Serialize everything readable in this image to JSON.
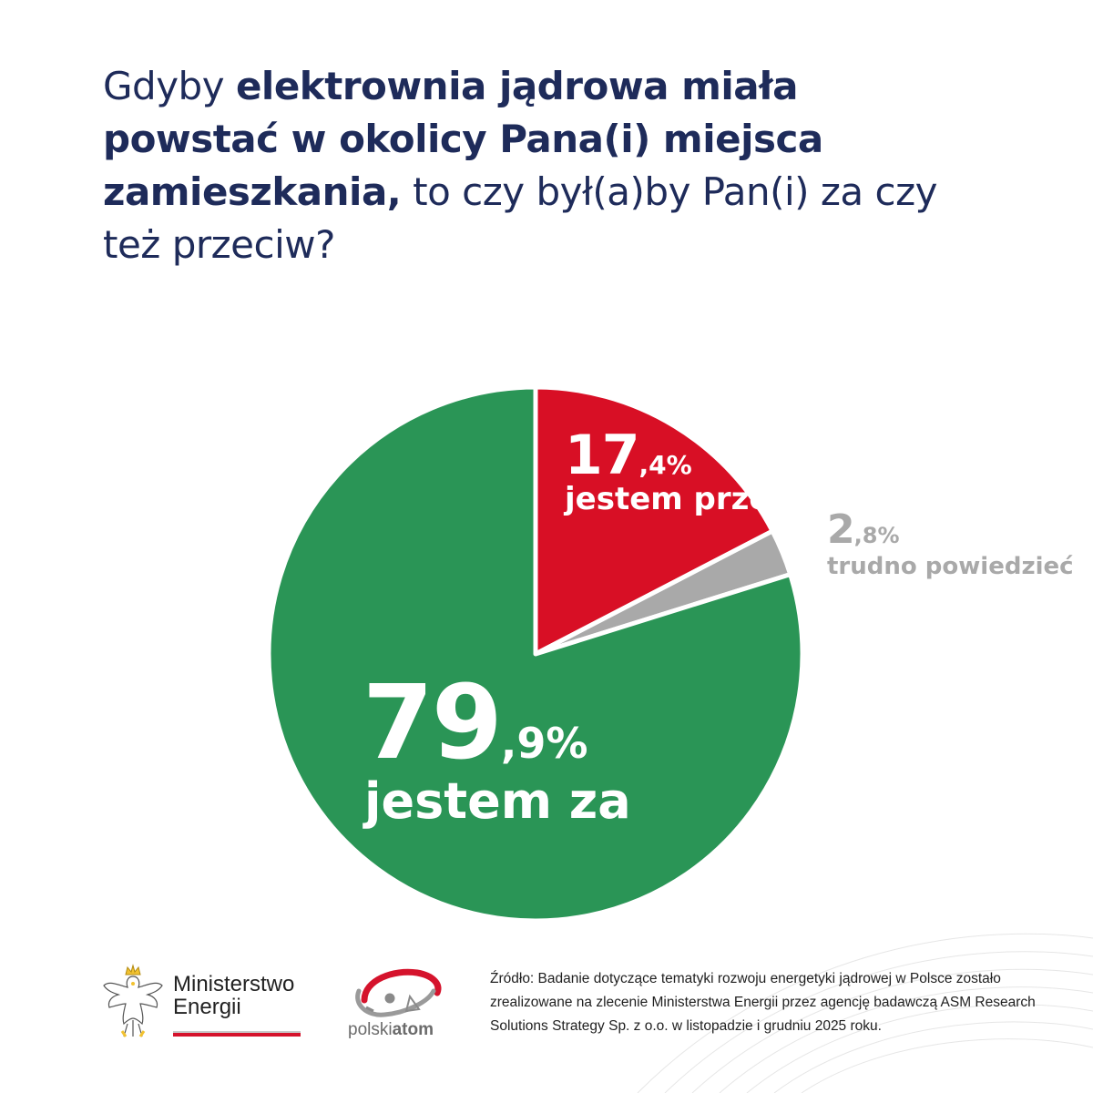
{
  "title": {
    "part1": "Gdyby ",
    "bold1": "elektrownia jądrowa miała powstać w okolicy Pana(i) miejsca zamieszkania,",
    "part2": " to czy był(a)by Pan(i) za czy też przeciw?"
  },
  "chart_data": {
    "type": "pie",
    "title": "Gdyby elektrownia jądrowa miała powstać w okolicy Pana(i) miejsca zamieszkania, to czy był(a)by Pan(i) za czy też przeciw?",
    "slices": [
      {
        "label": "jestem przeciw",
        "value": 17.4,
        "int": "17",
        "dec": ",4%",
        "color": "#d80f25"
      },
      {
        "label": "trudno powiedzieć",
        "value": 2.8,
        "int": "2",
        "dec": ",8%",
        "color": "#a9a9a9"
      },
      {
        "label": "jestem za",
        "value": 79.9,
        "int": "79",
        "dec": ",9%",
        "color": "#2a9556"
      }
    ],
    "start_angle_deg": 0,
    "direction": "clockwise"
  },
  "logos": {
    "ministry": {
      "line1": "Ministerstwo",
      "line2": "Energii"
    },
    "polskiatom": {
      "prefix": "polski",
      "bold": "atom"
    }
  },
  "source": "Źródło: Badanie dotyczące tematyki rozwoju energetyki jądrowej w Polsce zostało zrealizowane na zlecenie Ministerstwa Energii przez agencję badawczą ASM Research Solutions Strategy Sp. z o.o. w listopadzie i grudniu 2025 roku."
}
